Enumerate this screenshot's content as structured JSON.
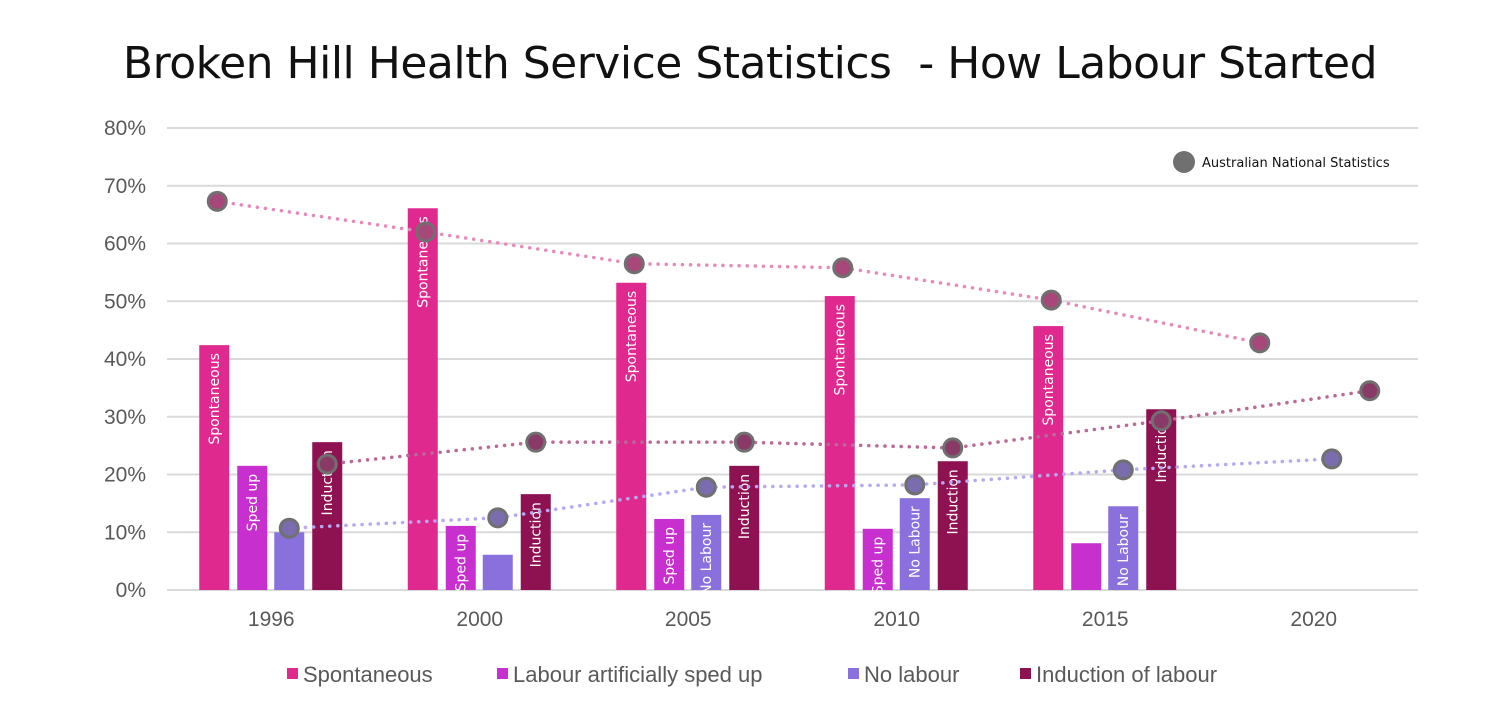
{
  "chart_data": {
    "type": "bar",
    "title": "Broken Hill Health Service Statistics  - How Labour Started",
    "xlabel": "",
    "ylabel": "",
    "categories": [
      "1996",
      "2000",
      "2005",
      "2010",
      "2015",
      "2020"
    ],
    "ylim": [
      0,
      80
    ],
    "yticks": [
      "0%",
      "10%",
      "20%",
      "30%",
      "40%",
      "50%",
      "60%",
      "70%",
      "80%"
    ],
    "grid": true,
    "legend_position": "bottom",
    "series": [
      {
        "name": "Spontaneous",
        "color": "#e0298f",
        "values": [
          42.4,
          66.1,
          53.2,
          50.9,
          45.7,
          null
        ],
        "bar_labels": [
          "Spontaneous",
          "Spontaneous",
          "Spontaneous",
          "Spontaneous",
          "Spontaneous",
          ""
        ]
      },
      {
        "name": "Labour artificially sped up",
        "color": "#c82fcf",
        "values": [
          21.5,
          11.1,
          12.3,
          10.6,
          8.1,
          null
        ],
        "bar_labels": [
          "Sped up",
          "Sped up",
          "Sped up",
          "Sped up",
          "",
          ""
        ]
      },
      {
        "name": "No labour",
        "color": "#8a70dd",
        "values": [
          10.0,
          6.1,
          13.0,
          15.9,
          14.5,
          null
        ],
        "bar_labels": [
          "",
          "",
          "No Labour",
          "No Labour",
          "No Labour",
          ""
        ]
      },
      {
        "name": "Induction of labour",
        "color": "#8e1152",
        "values": [
          25.6,
          16.6,
          21.5,
          22.3,
          31.3,
          null
        ],
        "bar_labels": [
          "Induction",
          "Induction",
          "Induction",
          "Induction",
          "Induction",
          ""
        ]
      }
    ],
    "reference": {
      "name": "Australian National Statistics",
      "marker_color": "#707070",
      "lines": [
        {
          "series": "Spontaneous",
          "line_color": "#e48bbd",
          "fill": "#a8487a",
          "values": [
            67.3,
            62.0,
            56.5,
            55.8,
            50.2,
            42.8
          ]
        },
        {
          "series": "No labour",
          "line_color": "#b8a8f0",
          "fill": "#7a6cae",
          "values": [
            10.7,
            12.5,
            17.8,
            18.2,
            20.8,
            22.7
          ]
        },
        {
          "series": "Induction of labour",
          "line_color": "#b86a98",
          "fill": "#8a3a66",
          "values": [
            21.8,
            25.6,
            25.6,
            24.6,
            29.3,
            34.5
          ]
        }
      ]
    }
  }
}
